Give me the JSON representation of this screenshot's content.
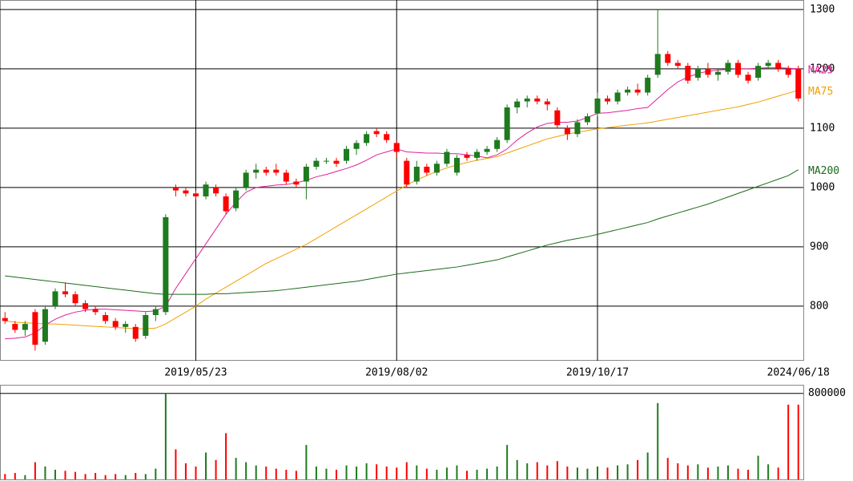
{
  "chart_data": [
    {
      "type": "candlestick",
      "categories": [
        null,
        null,
        null,
        null,
        null,
        null,
        null,
        null,
        null,
        null,
        null,
        null,
        null,
        null,
        null,
        null,
        null,
        null,
        null,
        "2019/05/23",
        null,
        null,
        null,
        null,
        null,
        null,
        null,
        null,
        null,
        null,
        null,
        null,
        null,
        null,
        null,
        null,
        null,
        null,
        null,
        "2019/08/02",
        null,
        null,
        null,
        null,
        null,
        null,
        null,
        null,
        null,
        null,
        null,
        null,
        null,
        null,
        null,
        null,
        null,
        null,
        null,
        "2019/10/17",
        null,
        null,
        null,
        null,
        null,
        null,
        null,
        null,
        null,
        null,
        null,
        null,
        null,
        null,
        null,
        null,
        null,
        null,
        null,
        "2024/06/18"
      ],
      "open": [
        780,
        770,
        760,
        790,
        740,
        800,
        825,
        820,
        805,
        795,
        785,
        775,
        765,
        765,
        750,
        785,
        790,
        1000,
        995,
        990,
        985,
        1000,
        985,
        965,
        1000,
        1025,
        1030,
        1030,
        1025,
        1010,
        1010,
        1035,
        1045,
        1045,
        1045,
        1065,
        1075,
        1095,
        1090,
        1075,
        1045,
        1010,
        1035,
        1025,
        1040,
        1025,
        1055,
        1050,
        1060,
        1065,
        1080,
        1135,
        1145,
        1150,
        1145,
        1130,
        1100,
        1090,
        1110,
        1125,
        1150,
        1145,
        1160,
        1165,
        1160,
        1190,
        1225,
        1210,
        1205,
        1185,
        1200,
        1190,
        1195,
        1210,
        1190,
        1185,
        1205,
        1210,
        1200,
        1200
      ],
      "high": [
        790,
        775,
        775,
        795,
        800,
        830,
        840,
        825,
        810,
        800,
        790,
        780,
        775,
        770,
        790,
        800,
        955,
        1005,
        1000,
        995,
        1010,
        1005,
        990,
        1000,
        1030,
        1040,
        1035,
        1040,
        1030,
        1015,
        1040,
        1050,
        1050,
        1050,
        1070,
        1080,
        1095,
        1100,
        1095,
        1080,
        1050,
        1045,
        1040,
        1045,
        1065,
        1055,
        1060,
        1065,
        1070,
        1085,
        1140,
        1150,
        1155,
        1155,
        1150,
        1135,
        1105,
        1115,
        1125,
        1160,
        1155,
        1165,
        1170,
        1175,
        1190,
        1300,
        1230,
        1215,
        1210,
        1205,
        1210,
        1200,
        1215,
        1215,
        1195,
        1210,
        1215,
        1215,
        1205,
        1205
      ],
      "low": [
        770,
        755,
        750,
        725,
        735,
        795,
        815,
        800,
        790,
        785,
        770,
        760,
        755,
        740,
        745,
        775,
        785,
        985,
        985,
        980,
        980,
        985,
        955,
        960,
        995,
        1015,
        1020,
        1020,
        1005,
        1000,
        980,
        1030,
        1040,
        1035,
        1040,
        1055,
        1070,
        1085,
        1075,
        1050,
        1000,
        1005,
        1020,
        1020,
        1035,
        1020,
        1045,
        1045,
        1055,
        1060,
        1075,
        1125,
        1135,
        1140,
        1130,
        1100,
        1080,
        1085,
        1105,
        1120,
        1140,
        1140,
        1155,
        1155,
        1155,
        1185,
        1205,
        1200,
        1175,
        1180,
        1185,
        1180,
        1190,
        1185,
        1175,
        1180,
        1200,
        1195,
        1185,
        1145
      ],
      "close": [
        775,
        760,
        770,
        735,
        795,
        825,
        820,
        805,
        795,
        790,
        775,
        765,
        770,
        745,
        785,
        795,
        950,
        995,
        990,
        985,
        1005,
        990,
        960,
        995,
        1025,
        1030,
        1025,
        1025,
        1010,
        1005,
        1035,
        1045,
        1045,
        1040,
        1065,
        1075,
        1090,
        1090,
        1080,
        1060,
        1005,
        1035,
        1025,
        1040,
        1060,
        1050,
        1050,
        1060,
        1065,
        1080,
        1135,
        1145,
        1150,
        1145,
        1140,
        1105,
        1090,
        1110,
        1120,
        1150,
        1145,
        1160,
        1165,
        1160,
        1185,
        1225,
        1210,
        1205,
        1180,
        1200,
        1190,
        1195,
        1210,
        1190,
        1180,
        1205,
        1210,
        1200,
        1190,
        1150
      ],
      "up_color": "#1e7a1e",
      "down_color": "#ff0000",
      "series": [
        {
          "name": "MA25",
          "color": "#e0209a",
          "values": [
            745,
            746,
            748,
            755,
            768,
            778,
            785,
            790,
            793,
            795,
            795,
            794,
            793,
            792,
            791,
            792,
            800,
            830,
            855,
            880,
            905,
            930,
            955,
            975,
            992,
            1000,
            1002,
            1004,
            1005,
            1008,
            1012,
            1018,
            1022,
            1027,
            1032,
            1038,
            1046,
            1055,
            1060,
            1065,
            1060,
            1059,
            1058,
            1058,
            1057,
            1057,
            1055,
            1053,
            1050,
            1055,
            1065,
            1080,
            1092,
            1102,
            1108,
            1110,
            1110,
            1112,
            1118,
            1125,
            1126,
            1128,
            1130,
            1133,
            1135,
            1150,
            1165,
            1178,
            1186,
            1192,
            1196,
            1198,
            1199,
            1200,
            1200,
            1201,
            1202,
            1202,
            1201,
            1200
          ]
        },
        {
          "name": "MA75",
          "color": "#f0a000",
          "values": [
            775,
            773,
            772,
            771,
            770,
            770,
            769,
            768,
            767,
            766,
            765,
            764,
            763,
            762,
            762,
            763,
            770,
            780,
            790,
            800,
            812,
            822,
            832,
            842,
            852,
            862,
            872,
            880,
            888,
            896,
            904,
            914,
            924,
            934,
            944,
            954,
            964,
            974,
            984,
            994,
            1004,
            1013,
            1020,
            1027,
            1033,
            1038,
            1042,
            1046,
            1049,
            1052,
            1058,
            1064,
            1070,
            1076,
            1082,
            1086,
            1090,
            1093,
            1096,
            1099,
            1101,
            1103,
            1105,
            1107,
            1109,
            1112,
            1115,
            1118,
            1121,
            1124,
            1127,
            1130,
            1133,
            1136,
            1140,
            1144,
            1149,
            1154,
            1159,
            1164
          ]
        },
        {
          "name": "MA200",
          "color": "#1a6a1a",
          "values": [
            851,
            849,
            847,
            845,
            843,
            841,
            839,
            837,
            835,
            833,
            831,
            829,
            827,
            825,
            823,
            821,
            820,
            820,
            820,
            820,
            820,
            821,
            821,
            822,
            823,
            824,
            825,
            826,
            828,
            830,
            832,
            834,
            836,
            838,
            840,
            842,
            845,
            848,
            851,
            854,
            856,
            858,
            860,
            862,
            864,
            866,
            869,
            872,
            875,
            878,
            883,
            888,
            893,
            898,
            903,
            907,
            911,
            914,
            917,
            921,
            925,
            929,
            933,
            937,
            941,
            947,
            952,
            957,
            962,
            967,
            972,
            978,
            984,
            990,
            996,
            1002,
            1008,
            1014,
            1020,
            1030
          ]
        }
      ],
      "ylim": [
        708,
        1316
      ],
      "yticks": [
        800,
        900,
        1000,
        1100,
        1200,
        1300
      ],
      "grid": true
    },
    {
      "type": "bar",
      "values": [
        50000,
        60000,
        40000,
        160000,
        120000,
        90000,
        80000,
        70000,
        50000,
        60000,
        40000,
        50000,
        40000,
        60000,
        50000,
        100000,
        800000,
        280000,
        150000,
        120000,
        250000,
        180000,
        430000,
        200000,
        160000,
        130000,
        120000,
        100000,
        90000,
        80000,
        320000,
        120000,
        100000,
        90000,
        130000,
        120000,
        150000,
        140000,
        120000,
        110000,
        160000,
        130000,
        100000,
        90000,
        110000,
        130000,
        80000,
        90000,
        100000,
        120000,
        320000,
        180000,
        150000,
        160000,
        130000,
        170000,
        120000,
        110000,
        100000,
        120000,
        110000,
        130000,
        140000,
        180000,
        250000,
        710000,
        200000,
        150000,
        130000,
        140000,
        110000,
        120000,
        130000,
        100000,
        90000,
        220000,
        140000,
        110000,
        695000,
        695000
      ],
      "ylim": [
        0,
        880000
      ],
      "yticks": [
        800000
      ],
      "grid": true
    }
  ]
}
